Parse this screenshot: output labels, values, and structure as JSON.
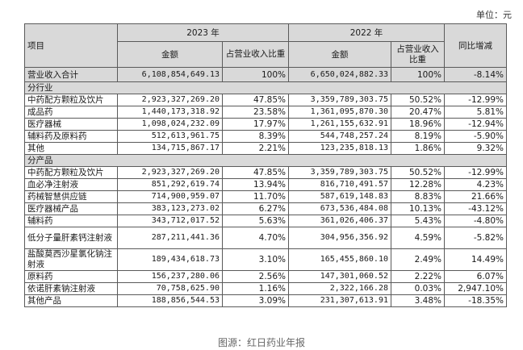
{
  "unit": "单位：元",
  "header": {
    "item": "项目",
    "year_2023": "2023 年",
    "year_2022": "2022 年",
    "amount": "金额",
    "share": "占营业收入比重",
    "yoy": "同比增减"
  },
  "total": {
    "label": "营业收入合计",
    "amt_2023": "6,108,854,649.13",
    "pct_2023": "100%",
    "amt_2022": "6,650,024,882.33",
    "pct_2022": "100%",
    "yoy": "-8.14%"
  },
  "sections": [
    {
      "title": "分行业",
      "rows": [
        {
          "label": "中药配方颗粒及饮片",
          "amt_2023": "2,923,327,269.20",
          "pct_2023": "47.85%",
          "amt_2022": "3,359,789,303.75",
          "pct_2022": "50.52%",
          "yoy": "-12.99%"
        },
        {
          "label": "成品药",
          "amt_2023": "1,440,173,318.92",
          "pct_2023": "23.58%",
          "amt_2022": "1,361,095,870.30",
          "pct_2022": "20.47%",
          "yoy": "5.81%"
        },
        {
          "label": "医疗器械",
          "amt_2023": "1,098,024,232.09",
          "pct_2023": "17.97%",
          "amt_2022": "1,261,155,632.91",
          "pct_2022": "18.96%",
          "yoy": "-12.94%"
        },
        {
          "label": "辅料药及原料药",
          "amt_2023": "512,613,961.75",
          "pct_2023": "8.39%",
          "amt_2022": "544,748,257.24",
          "pct_2022": "8.19%",
          "yoy": "-5.90%"
        },
        {
          "label": "其他",
          "amt_2023": "134,715,867.17",
          "pct_2023": "2.21%",
          "amt_2022": "123,235,818.13",
          "pct_2022": "1.86%",
          "yoy": "9.32%"
        }
      ]
    },
    {
      "title": "分产品",
      "rows": [
        {
          "label": "中药配方颗粒及饮片",
          "amt_2023": "2,923,327,269.20",
          "pct_2023": "47.85%",
          "amt_2022": "3,359,789,303.75",
          "pct_2022": "50.52%",
          "yoy": "-12.99%"
        },
        {
          "label": "血必净注射液",
          "amt_2023": "851,292,619.74",
          "pct_2023": "13.94%",
          "amt_2022": "816,710,491.57",
          "pct_2022": "12.28%",
          "yoy": "4.23%"
        },
        {
          "label": "药械智慧供应链",
          "amt_2023": "714,900,959.07",
          "pct_2023": "11.70%",
          "amt_2022": "587,619,148.83",
          "pct_2022": "8.83%",
          "yoy": "21.66%"
        },
        {
          "label": "医疗器械产品",
          "amt_2023": "383,123,273.02",
          "pct_2023": "6.27%",
          "amt_2022": "673,536,484.08",
          "pct_2022": "10.13%",
          "yoy": "-43.12%"
        },
        {
          "label": "辅料药",
          "amt_2023": "343,712,017.52",
          "pct_2023": "5.63%",
          "amt_2022": "361,026,406.37",
          "pct_2022": "5.43%",
          "yoy": "-4.80%"
        },
        {
          "label": "低分子量肝素钙注射液",
          "amt_2023": "287,211,441.36",
          "pct_2023": "4.70%",
          "amt_2022": "304,956,356.92",
          "pct_2022": "4.59%",
          "yoy": "-5.82%"
        },
        {
          "label": "盐酸莫西沙星氯化钠注射液",
          "amt_2023": "189,434,618.73",
          "pct_2023": "3.10%",
          "amt_2022": "165,455,860.10",
          "pct_2022": "2.49%",
          "yoy": "14.49%"
        },
        {
          "label": "原料药",
          "amt_2023": "156,237,280.06",
          "pct_2023": "2.56%",
          "amt_2022": "147,301,060.52",
          "pct_2022": "2.22%",
          "yoy": "6.07%"
        },
        {
          "label": "依诺肝素钠注射液",
          "amt_2023": "70,758,625.90",
          "pct_2023": "1.16%",
          "amt_2022": "2,322,166.28",
          "pct_2022": "0.03%",
          "yoy": "2,947.10%"
        },
        {
          "label": "其他产品",
          "amt_2023": "188,856,544.53",
          "pct_2023": "3.09%",
          "amt_2022": "231,307,613.91",
          "pct_2022": "3.48%",
          "yoy": "-18.35%"
        }
      ]
    }
  ],
  "caption": "图源：红日药业年报"
}
